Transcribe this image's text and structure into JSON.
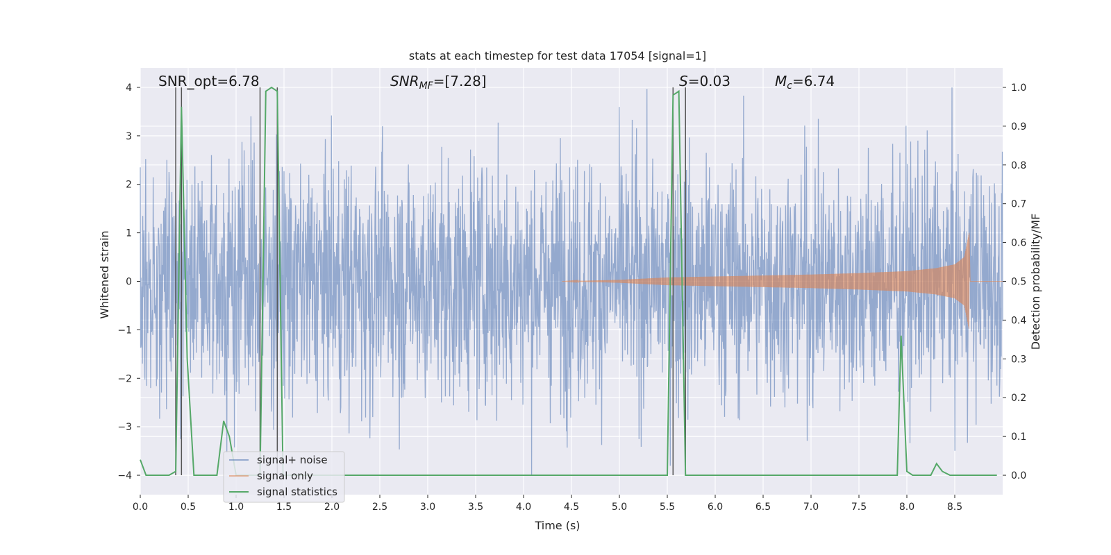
{
  "chart_data": {
    "type": "line",
    "title": "stats at each timestep for test data 17054 [signal=1]",
    "xlabel": "Time (s)",
    "ylabel_left": "Whitened strain",
    "ylabel_right": "Detection probability/MF",
    "xlim": [
      0.0,
      9.0
    ],
    "ylim_left": [
      -4.4,
      4.4
    ],
    "ylim_right": [
      -0.05,
      1.05
    ],
    "xticks": [
      0.0,
      0.5,
      1.0,
      1.5,
      2.0,
      2.5,
      3.0,
      3.5,
      4.0,
      4.5,
      5.0,
      5.5,
      6.0,
      6.5,
      7.0,
      7.5,
      8.0,
      8.5
    ],
    "xtick_labels": [
      "0.0",
      "0.5",
      "1.0",
      "1.5",
      "2.0",
      "2.5",
      "3.0",
      "3.5",
      "4.0",
      "4.5",
      "5.0",
      "5.5",
      "6.0",
      "6.5",
      "7.0",
      "7.5",
      "8.0",
      "8.5"
    ],
    "yticks_left": [
      -4,
      -3,
      -2,
      -1,
      0,
      1,
      2,
      3,
      4
    ],
    "ytick_labels_left": [
      "−4",
      "−3",
      "−2",
      "−1",
      "0",
      "1",
      "2",
      "3",
      "4"
    ],
    "yticks_right": [
      0.0,
      0.1,
      0.2,
      0.3,
      0.4,
      0.5,
      0.6,
      0.7,
      0.8,
      0.9,
      1.0
    ],
    "ytick_labels_right": [
      "0.0",
      "0.1",
      "0.2",
      "0.3",
      "0.4",
      "0.5",
      "0.6",
      "0.7",
      "0.8",
      "0.9",
      "1.0"
    ],
    "grid": true,
    "legend_position": "lower-left",
    "annotations": [
      {
        "text": "SNR_opt=6.78",
        "x": 0.2
      },
      {
        "text": "SNR_MF=[7.28]",
        "x": 2.6,
        "math": "snrmf"
      },
      {
        "text": "S=0.03",
        "x": 5.6,
        "math": "s"
      },
      {
        "text": "M_c=6.74",
        "x": 6.6,
        "math": "mc"
      }
    ],
    "vlines": [
      {
        "x": 0.37,
        "ymin": -4.0,
        "ymax": 4.0
      },
      {
        "x": 0.43,
        "ymin": -4.0,
        "ymax": 4.0
      },
      {
        "x": 1.25,
        "ymin": -4.0,
        "ymax": 4.0
      },
      {
        "x": 1.43,
        "ymin": -4.0,
        "ymax": 4.0
      },
      {
        "x": 5.56,
        "ymin": -4.0,
        "ymax": 4.0
      },
      {
        "x": 5.69,
        "ymin": -4.0,
        "ymax": 4.0
      }
    ],
    "series": [
      {
        "name": "signal+ noise",
        "color": "#4c72b0",
        "kind": "noise",
        "amplitude_envelope": 1.55,
        "max_abs": 4.0,
        "x_range": [
          0.0,
          9.0
        ]
      },
      {
        "name": "signal only",
        "color": "#dd8452",
        "kind": "chirp",
        "x_start": 4.4,
        "x_end": 8.65,
        "envelope": [
          [
            4.4,
            0.0
          ],
          [
            5.0,
            0.03
          ],
          [
            5.5,
            0.08
          ],
          [
            6.0,
            0.1
          ],
          [
            6.5,
            0.12
          ],
          [
            7.0,
            0.14
          ],
          [
            7.5,
            0.17
          ],
          [
            8.0,
            0.21
          ],
          [
            8.3,
            0.27
          ],
          [
            8.5,
            0.35
          ],
          [
            8.6,
            0.5
          ],
          [
            8.65,
            1.0
          ]
        ]
      },
      {
        "name": "signal statistics",
        "color": "#55a868",
        "kind": "line",
        "axis": "right",
        "x": [
          0.0,
          0.06,
          0.12,
          0.3,
          0.37,
          0.43,
          0.49,
          0.56,
          0.62,
          0.8,
          0.87,
          0.93,
          1.0,
          1.06,
          1.25,
          1.31,
          1.37,
          1.43,
          1.49,
          1.55,
          5.5,
          5.56,
          5.62,
          5.69,
          5.75,
          5.81,
          5.87,
          7.9,
          7.94,
          8.0,
          8.06,
          8.25,
          8.31,
          8.37,
          8.45,
          8.94
        ],
        "y": [
          0.04,
          0.0,
          0.0,
          0.0,
          0.01,
          0.95,
          0.3,
          0.0,
          0.0,
          0.0,
          0.14,
          0.1,
          0.0,
          0.0,
          0.0,
          0.99,
          1.0,
          0.99,
          0.0,
          0.0,
          0.0,
          0.98,
          0.99,
          0.0,
          0.0,
          0.0,
          0.0,
          0.0,
          0.36,
          0.01,
          0.0,
          0.0,
          0.03,
          0.01,
          0.0,
          0.0
        ]
      }
    ]
  }
}
